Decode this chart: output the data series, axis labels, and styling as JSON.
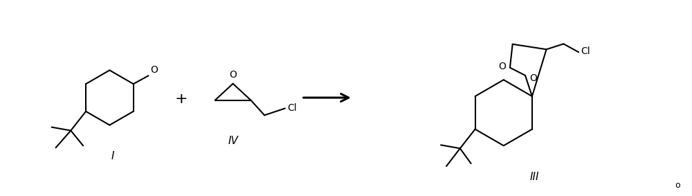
{
  "bg_color": "#ffffff",
  "line_color": "#000000",
  "line_width": 1.5,
  "label_I": "I",
  "label_IV": "IV",
  "label_III": "III",
  "plus_sign": "+",
  "O_label": "O",
  "Cl_label": "Cl",
  "degree_symbol": "o",
  "figsize": [
    10.0,
    2.83
  ],
  "dpi": 100
}
